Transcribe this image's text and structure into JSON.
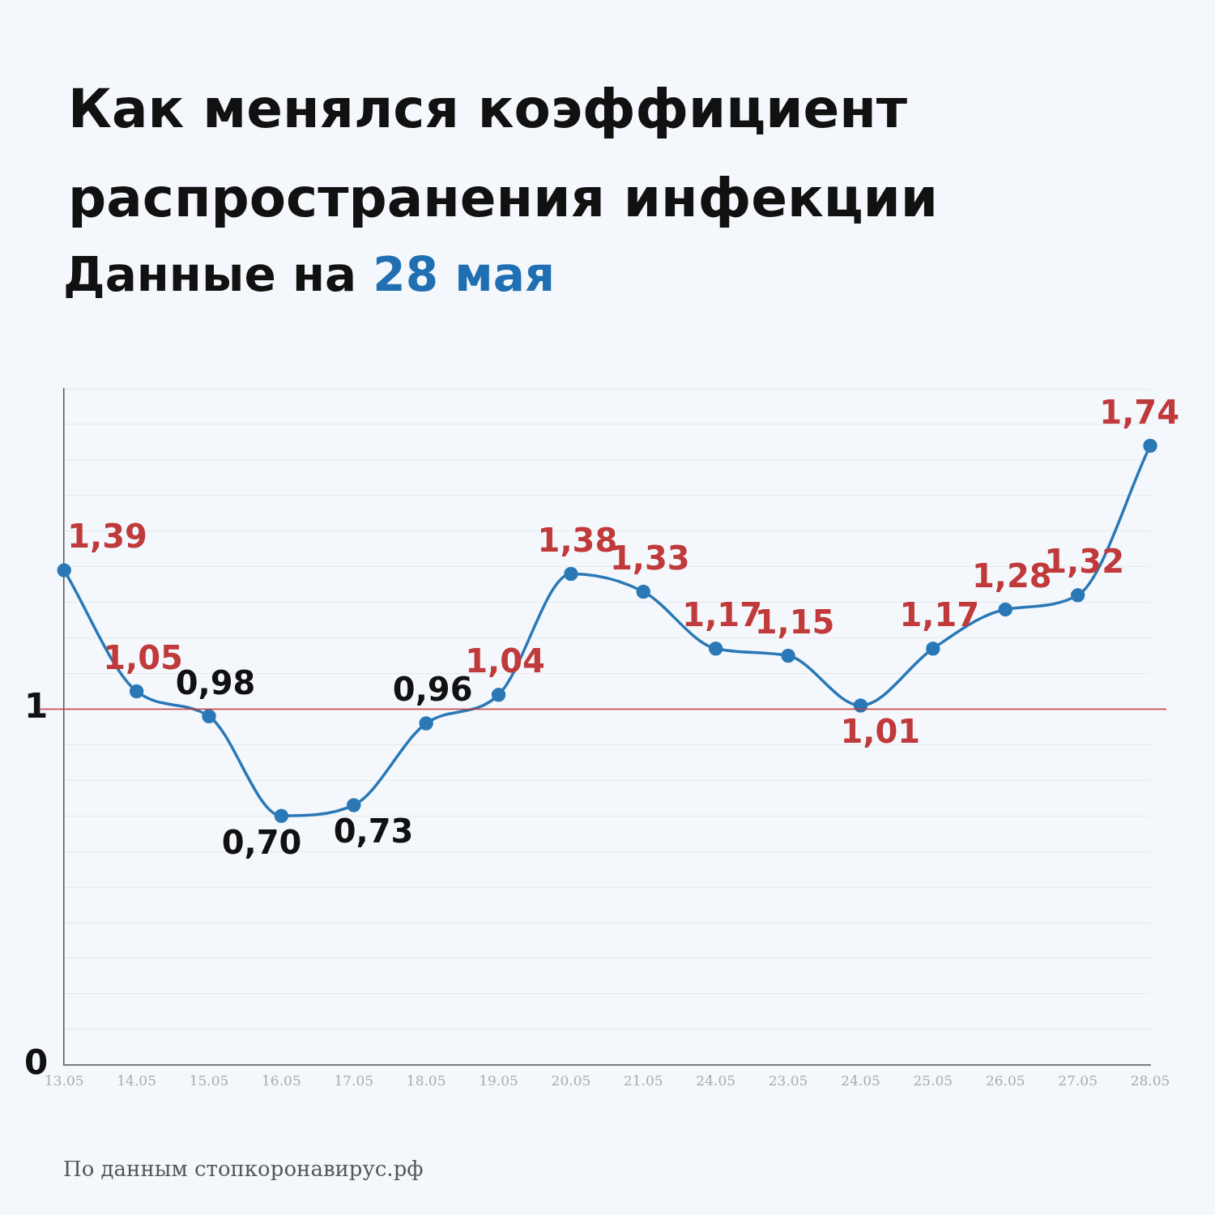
{
  "chart_data": {
    "type": "line",
    "title": "Как менялся коэффициент распространения инфекции",
    "subtitle": "Данные на 28 мая",
    "categories": [
      "13.05",
      "14.05",
      "15.05",
      "16.05",
      "17.05",
      "18.05",
      "19.05",
      "20.05",
      "21.05",
      "24.05",
      "23.05",
      "24.05",
      "25.05",
      "26.05",
      "27.05",
      "28.05"
    ],
    "series": [
      {
        "color": "#2a78b5",
        "values": [
          1.39,
          1.05,
          0.98,
          0.7,
          0.73,
          0.96,
          1.04,
          1.38,
          1.33,
          1.17,
          1.15,
          1.01,
          1.17,
          1.28,
          1.32,
          1.74
        ],
        "value_labels": [
          "1,39",
          "1,05",
          "0,98",
          "0,70",
          "0,73",
          "0,96",
          "1,04",
          "1,38",
          "1,33",
          "1,17",
          "1,15",
          "1,01",
          "1,17",
          "1,28",
          "1,32",
          "1,74"
        ]
      }
    ],
    "ylim": [
      0,
      1.9
    ],
    "yticks": [
      0,
      {
        "value": 0.1,
        "label": null
      },
      {
        "value": 0.2,
        "label": null
      },
      {
        "value": 0.3,
        "label": null
      },
      {
        "value": 0.4,
        "label": null
      },
      {
        "value": 0.5,
        "label": null
      },
      {
        "value": 0.6,
        "label": null
      },
      {
        "value": 0.7,
        "label": null
      },
      {
        "value": 0.8,
        "label": null
      },
      {
        "value": 0.9,
        "label": null
      },
      1,
      {
        "value": 1.1,
        "label": null
      },
      {
        "value": 1.2,
        "label": null
      },
      {
        "value": 1.3,
        "label": null
      },
      {
        "value": 1.4,
        "label": null
      },
      {
        "value": 1.5,
        "label": null
      },
      {
        "value": 1.6,
        "label": null
      },
      {
        "value": 1.7,
        "label": null
      },
      {
        "value": 1.8,
        "label": null
      },
      {
        "value": 1.9,
        "label": null
      }
    ],
    "grid": "y",
    "marker": "circle",
    "line_style": "solid",
    "legend": false,
    "ref_lines": [
      {
        "axis": "y",
        "value": 1,
        "color": "#c0393b"
      }
    ],
    "annotations": [
      "По данным стопкоронавирус.рф"
    ]
  }
}
